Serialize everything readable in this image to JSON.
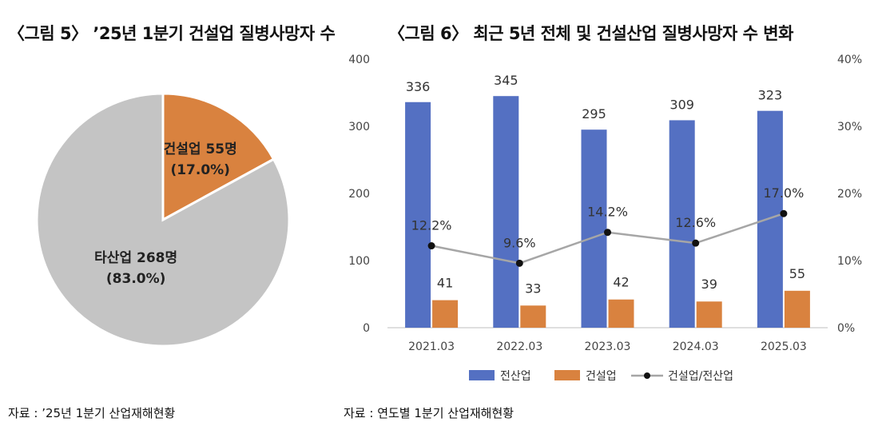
{
  "figure5": {
    "title": "〈그림 5〉 ’25년 1분기 건설업 질병사망자 수",
    "source": "자료 : ’25년 1분기 산업재해현황"
  },
  "figure6": {
    "title": "〈그림 6〉 최근 5년 전체 및 건설산업 질병사망자 수 변화",
    "source": "자료 : 연도별 1분기 산업재해현황"
  },
  "colors": {
    "pie_construction": "#d9823f",
    "pie_other": "#c4c4c4",
    "bar_all": "#5470c2",
    "bar_construction": "#d9823f",
    "line_ratio": "#a6a6a6",
    "marker": "#111111"
  },
  "chart_data": [
    {
      "type": "pie",
      "slices": [
        {
          "label": "건설업 55명",
          "value": 55,
          "percent_label": "(17.0%)"
        },
        {
          "label": "타산업 268명",
          "value": 268,
          "percent_label": "(83.0%)"
        }
      ]
    },
    {
      "type": "bar",
      "categories": [
        "2021.03",
        "2022.03",
        "2023.03",
        "2024.03",
        "2025.03"
      ],
      "series": [
        {
          "name": "전산업",
          "axis": "left",
          "values": [
            336,
            345,
            295,
            309,
            323
          ],
          "labels": [
            "336",
            "345",
            "295",
            "309",
            "323"
          ]
        },
        {
          "name": "건설업",
          "axis": "left",
          "values": [
            41,
            33,
            42,
            39,
            55
          ],
          "labels": [
            "41",
            "33",
            "42",
            "39",
            "55"
          ]
        },
        {
          "name": "건설업/전산업",
          "axis": "right",
          "type": "line",
          "values": [
            12.2,
            9.6,
            14.2,
            12.6,
            17.0
          ],
          "labels": [
            "12.2%",
            "9.6%",
            "14.2%",
            "12.6%",
            "17.0%"
          ]
        }
      ],
      "ylim_left": [
        0,
        400
      ],
      "yticks_left": [
        "0",
        "100",
        "200",
        "300",
        "400"
      ],
      "ylim_right": [
        0,
        40
      ],
      "yticks_right": [
        "0%",
        "10%",
        "20%",
        "30%",
        "40%"
      ],
      "legend": "bottom",
      "grid": false
    }
  ]
}
